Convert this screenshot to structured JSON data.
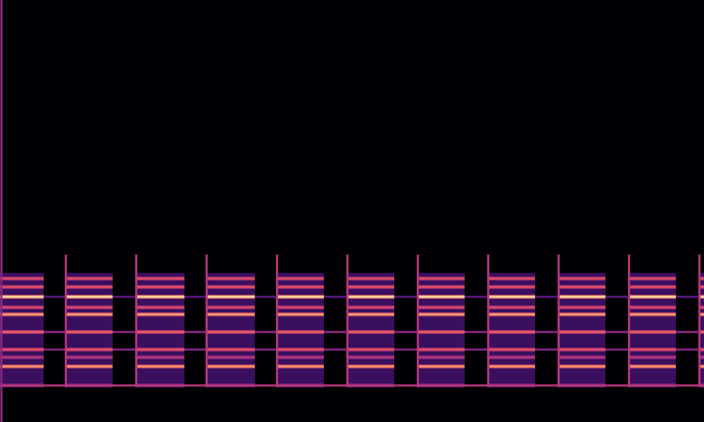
{
  "chart_data": {
    "type": "spectrogram",
    "tick_labels": false,
    "xlim": [
      0,
      10
    ],
    "ylim": [
      0,
      600
    ],
    "notes": {
      "start": [
        -0.08,
        0.92,
        1.92,
        2.92,
        3.92,
        4.92,
        5.92,
        6.92,
        7.92,
        8.92,
        9.92
      ],
      "end": [
        0.62,
        1.6,
        2.62,
        3.62,
        4.6,
        5.6,
        6.6,
        7.6,
        8.6,
        9.6,
        10.6
      ]
    },
    "partials": {
      "freq": [
        52,
        79,
        92,
        103,
        128,
        153,
        163,
        178,
        192,
        204
      ],
      "level": [
        0.5,
        0.78,
        0.5,
        0.62,
        0.66,
        0.8,
        0.6,
        0.92,
        0.62,
        0.62
      ]
    },
    "noise": {
      "low": 50,
      "high": 212,
      "level": 0.22
    },
    "transient": {
      "top": 238,
      "level": 0.5
    },
    "drone": {
      "freq": [
        52,
        103,
        128,
        178
      ],
      "level": [
        0.5,
        0.38,
        0.4,
        0.28
      ]
    },
    "click": {
      "time": 0.02,
      "level": 0.4
    },
    "level_range": [
      0,
      1
    ]
  }
}
